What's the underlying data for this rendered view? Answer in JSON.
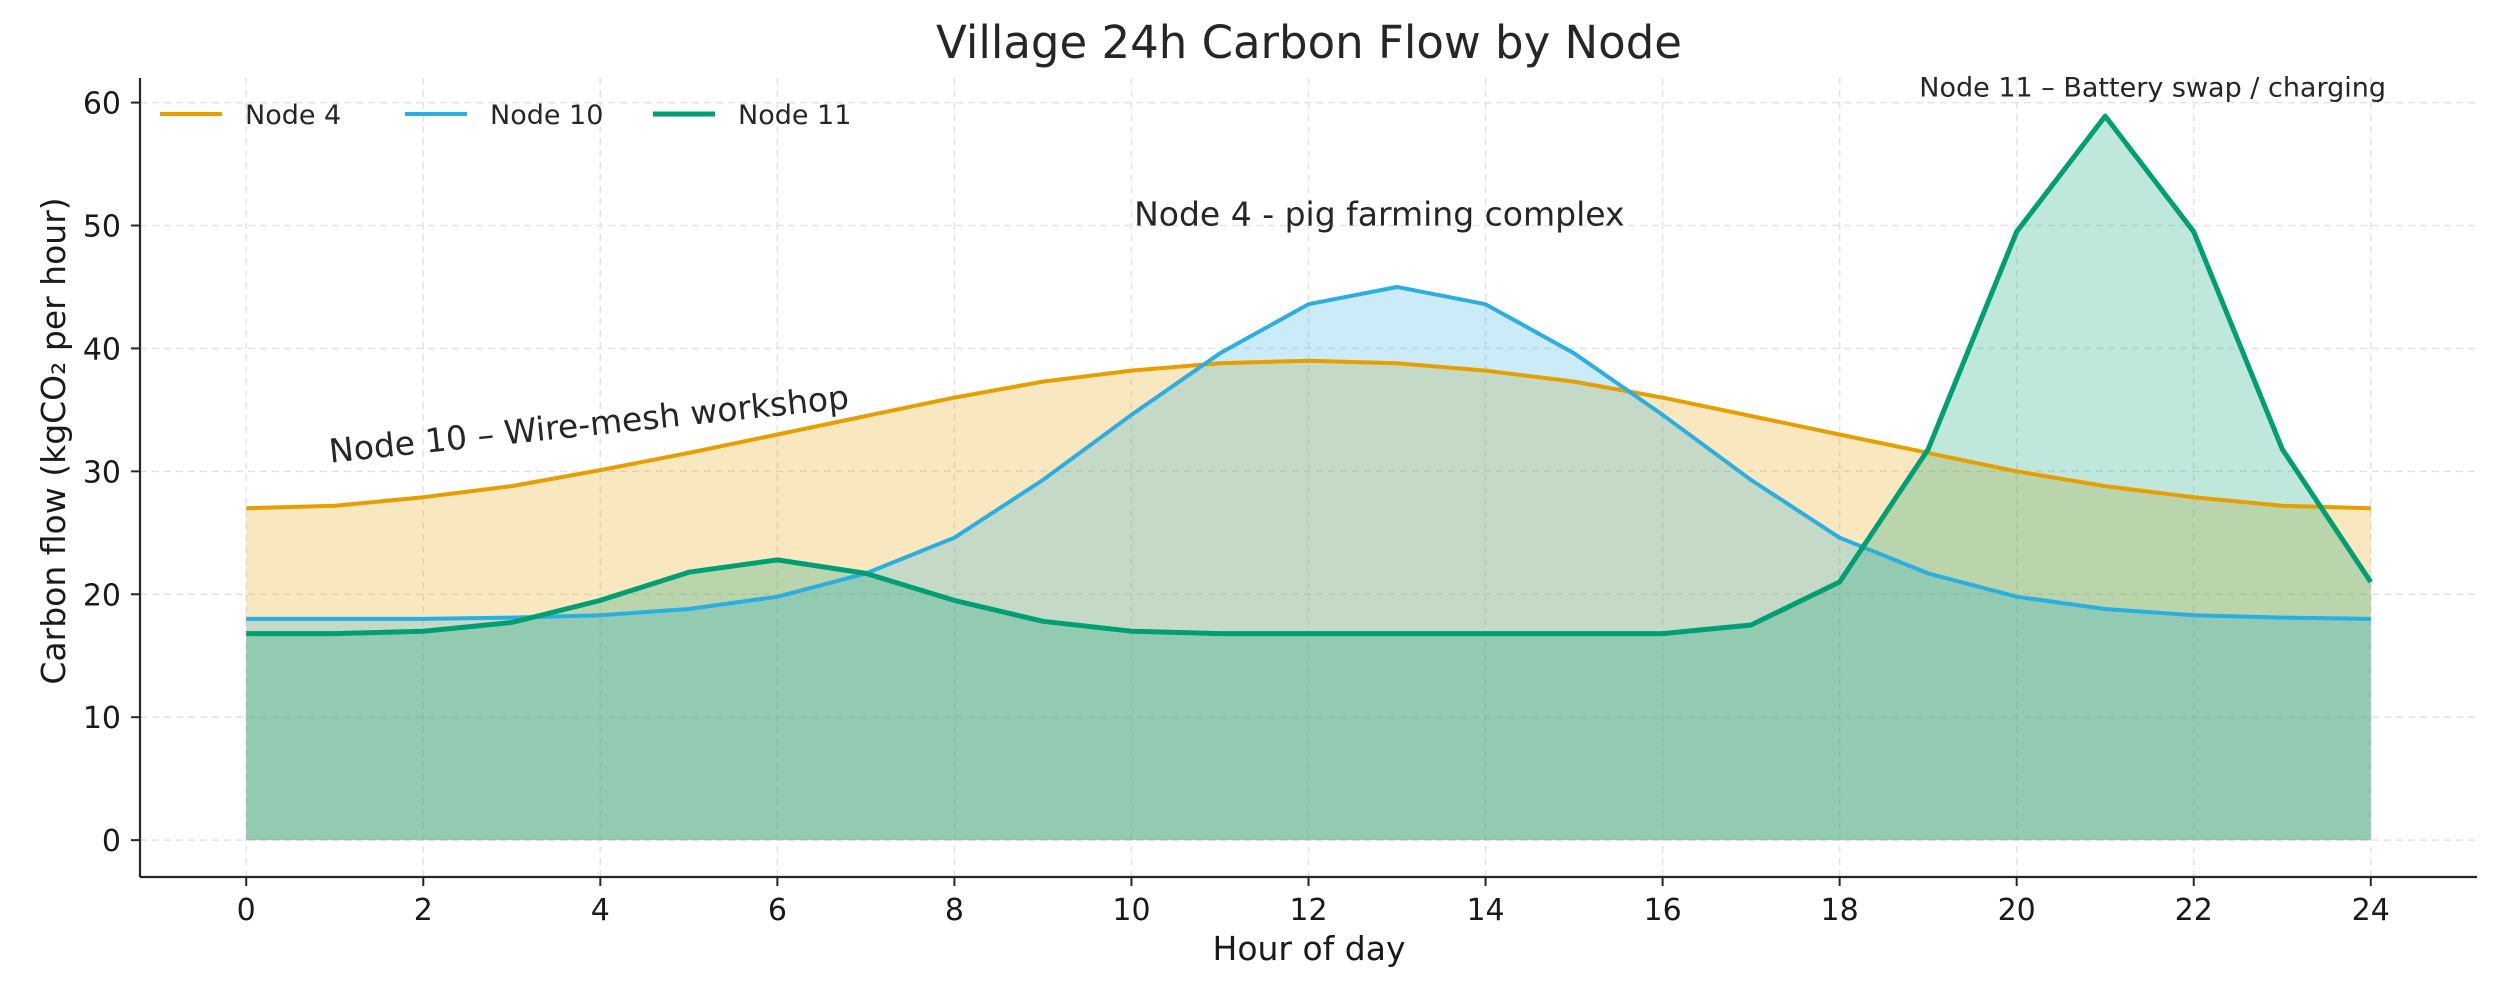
{
  "chart_data": {
    "type": "area",
    "title": "Village 24h Carbon Flow by Node",
    "xlabel": "Hour of day",
    "ylabel": "Carbon flow (kgCO₂ per hour)",
    "xlim": [
      -1.2,
      25.2
    ],
    "ylim": [
      -3,
      62
    ],
    "x_ticks": [
      0,
      2,
      4,
      6,
      8,
      10,
      12,
      14,
      16,
      18,
      20,
      22,
      24
    ],
    "y_ticks": [
      0,
      10,
      20,
      30,
      40,
      50,
      60
    ],
    "grid": true,
    "legend_position": "top-left",
    "x": [
      0,
      1,
      2,
      3,
      4,
      5,
      6,
      7,
      8,
      9,
      10,
      11,
      12,
      13,
      14,
      15,
      16,
      17,
      18,
      19,
      20,
      21,
      22,
      23,
      24
    ],
    "series": [
      {
        "name": "Node 4",
        "color": "#E69F00",
        "fill": "#FCE5BC",
        "values": [
          27.0,
          27.2,
          27.9,
          28.8,
          30.1,
          31.5,
          33.0,
          34.5,
          36.0,
          37.3,
          38.2,
          38.8,
          39.0,
          38.8,
          38.2,
          37.3,
          36.0,
          34.5,
          33.0,
          31.5,
          30.0,
          28.8,
          27.9,
          27.2,
          27.0
        ]
      },
      {
        "name": "Node 10",
        "color": "#2BAEE0",
        "fill": "#CDE9F4",
        "values": [
          18.0,
          18.0,
          18.0,
          18.1,
          18.3,
          18.8,
          19.8,
          21.7,
          24.6,
          29.3,
          34.6,
          39.6,
          43.6,
          45.0,
          43.6,
          39.6,
          34.6,
          29.3,
          24.6,
          21.7,
          19.8,
          18.8,
          18.3,
          18.1,
          18.0
        ]
      },
      {
        "name": "Node 11",
        "color": "#009E73",
        "fill": "#A7E3D3",
        "values": [
          16.8,
          16.8,
          17.0,
          17.7,
          19.5,
          21.8,
          22.8,
          21.7,
          19.5,
          17.8,
          17.0,
          16.8,
          16.8,
          16.8,
          16.8,
          16.8,
          16.8,
          17.5,
          21.0,
          31.8,
          49.5,
          58.9,
          49.5,
          31.8,
          21.0
        ]
      }
    ],
    "annotations": [
      {
        "text": "Node 4 - pig farming complex",
        "x": 12.8,
        "y": 50,
        "style": "large"
      },
      {
        "text": "Node 10 – Wire-mesh workshop",
        "x": 0.95,
        "y": 30.7,
        "rotate": -6,
        "style": "large"
      },
      {
        "text": "Node 11 – Battery swap / charging",
        "x": 18.9,
        "y": 60.5,
        "style": "small"
      }
    ]
  }
}
